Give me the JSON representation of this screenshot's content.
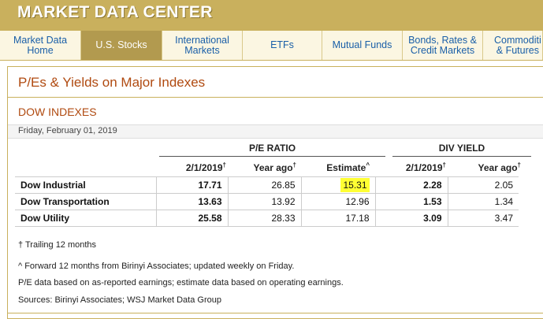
{
  "banner": {
    "title": "MARKET DATA CENTER"
  },
  "tabs": [
    {
      "label": "Market Data\nHome"
    },
    {
      "label": "U.S. Stocks"
    },
    {
      "label": "International\nMarkets"
    },
    {
      "label": "ETFs"
    },
    {
      "label": "Mutual Funds"
    },
    {
      "label": "Bonds, Rates &\nCredit Markets"
    },
    {
      "label": "Commoditi\n& Futures"
    }
  ],
  "section": {
    "title": "P/Es & Yields on Major Indexes",
    "subtitle": "DOW INDEXES",
    "date": "Friday, February 01, 2019"
  },
  "table": {
    "group_pe": "P/E RATIO",
    "group_div": "DIV YIELD",
    "columns": [
      "2/1/2019",
      "Year ago",
      "Estimate",
      "2/1/2019",
      "Year ago"
    ],
    "marks": [
      "†",
      "†",
      "^",
      "†",
      "†"
    ],
    "rows": [
      {
        "name": "Dow Industrial",
        "values": [
          "17.71",
          "26.85",
          "15.31",
          "2.28",
          "2.05"
        ]
      },
      {
        "name": "Dow Transportation",
        "values": [
          "13.63",
          "13.92",
          "12.96",
          "1.53",
          "1.34"
        ]
      },
      {
        "name": "Dow Utility",
        "values": [
          "25.58",
          "28.33",
          "17.18",
          "3.09",
          "3.47"
        ]
      }
    ],
    "highlight_color": "#ffff33"
  },
  "notes": [
    "† Trailing 12 months",
    "^ Forward 12 months from Birinyi Associates; updated weekly on Friday.",
    "P/E data based on as-reported earnings; estimate data based on operating earnings.",
    "Sources: Birinyi Associates; WSJ Market Data Group"
  ]
}
